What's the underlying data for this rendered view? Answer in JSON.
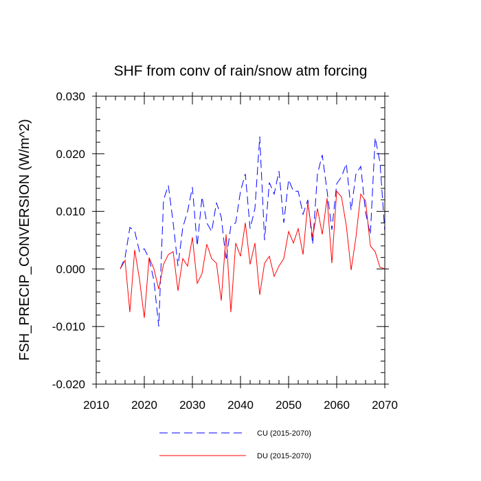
{
  "chart_data": {
    "type": "line",
    "title": "SHF from conv of rain/snow atm forcing",
    "xlabel": "",
    "ylabel": "FSH_PRECIP_CONVERSION  (W/m^2)",
    "xlim": [
      2010,
      2070
    ],
    "ylim": [
      -0.02,
      0.03
    ],
    "x_ticks": [
      2010,
      2020,
      2030,
      2040,
      2050,
      2060,
      2070
    ],
    "x_tick_labels": [
      "2010",
      "2020",
      "2030",
      "2040",
      "2050",
      "2060",
      "2070"
    ],
    "y_ticks": [
      -0.02,
      -0.01,
      0.0,
      0.01,
      0.02,
      0.03
    ],
    "y_tick_labels": [
      "-0.020",
      "-0.010",
      "0.000",
      "0.010",
      "0.020",
      "0.030"
    ],
    "legend_position": "bottom",
    "x": [
      2015,
      2016,
      2017,
      2018,
      2019,
      2020,
      2021,
      2022,
      2023,
      2024,
      2025,
      2026,
      2027,
      2028,
      2029,
      2030,
      2031,
      2032,
      2033,
      2034,
      2035,
      2036,
      2037,
      2038,
      2039,
      2040,
      2041,
      2042,
      2043,
      2044,
      2045,
      2046,
      2047,
      2048,
      2049,
      2050,
      2051,
      2052,
      2053,
      2054,
      2055,
      2056,
      2057,
      2058,
      2059,
      2060,
      2061,
      2062,
      2063,
      2064,
      2065,
      2066,
      2067,
      2068,
      2069,
      2070
    ],
    "series": [
      {
        "name": "CU (2015-2070)",
        "color": "#0000ff",
        "dash": "dashed",
        "values": [
          0.0,
          0.002,
          0.0072,
          0.0066,
          0.003,
          0.0035,
          0.0018,
          -0.002,
          -0.01,
          0.012,
          0.0145,
          0.008,
          0.0005,
          0.0072,
          0.01,
          0.0142,
          0.004,
          0.0125,
          0.008,
          0.0065,
          0.0115,
          0.009,
          0.0015,
          0.0075,
          0.008,
          0.0135,
          0.0165,
          0.007,
          0.0105,
          0.023,
          0.005,
          0.015,
          0.013,
          0.017,
          0.008,
          0.0155,
          0.0135,
          0.0135,
          0.0095,
          0.012,
          0.0043,
          0.0165,
          0.0198,
          0.0135,
          0.0068,
          0.0148,
          0.016,
          0.0183,
          0.0102,
          0.0165,
          0.0178,
          0.0098,
          0.006,
          0.0228,
          0.0185,
          0.0065
        ]
      },
      {
        "name": "DU (2015-2070)",
        "color": "#ff0000",
        "dash": "solid",
        "values": [
          0.0,
          0.0015,
          -0.0075,
          0.0033,
          -0.0018,
          -0.0085,
          0.002,
          0.0,
          -0.0035,
          0.0008,
          0.0025,
          0.003,
          -0.0038,
          0.0018,
          0.0005,
          0.0055,
          -0.0025,
          -0.0008,
          0.0043,
          0.0018,
          0.001,
          -0.0055,
          0.006,
          -0.0075,
          0.0045,
          0.0022,
          0.008,
          0.0008,
          0.0045,
          -0.0045,
          0.001,
          0.0022,
          -0.0013,
          0.0005,
          0.0018,
          0.0065,
          0.0045,
          0.007,
          0.0025,
          0.0115,
          0.0055,
          0.0105,
          0.006,
          0.0123,
          0.001,
          0.0135,
          0.0125,
          0.0075,
          -0.0002,
          0.0055,
          0.013,
          0.0118,
          0.004,
          0.003,
          0.0003,
          0.0
        ]
      }
    ]
  }
}
